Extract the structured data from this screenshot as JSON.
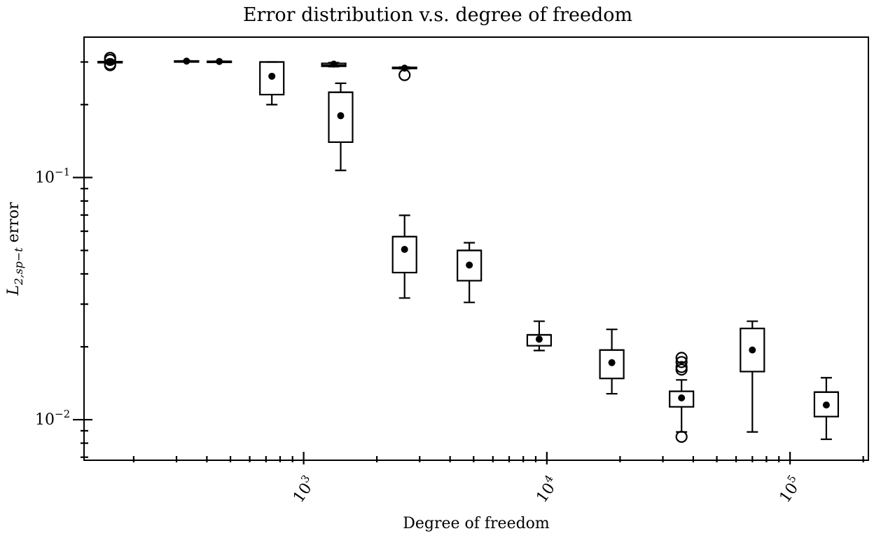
{
  "chart_data": {
    "type": "box",
    "title": "Error distribution v.s. degree of freedom",
    "xlabel": "Degree of freedom",
    "ylabel_main": "L",
    "ylabel_sub": "2,sp−t",
    "ylabel_tail": " error",
    "x_scale": "log",
    "y_scale": "log",
    "xlim": [
      125,
      210000
    ],
    "ylim": [
      0.0068,
      0.38
    ],
    "x_ticks": [
      {
        "value": 1000,
        "base": "10",
        "exp": "3"
      },
      {
        "value": 10000,
        "base": "10",
        "exp": "4"
      },
      {
        "value": 100000,
        "base": "10",
        "exp": "5"
      }
    ],
    "y_ticks": [
      {
        "value": 0.1,
        "base": "10",
        "exp": "−1"
      },
      {
        "value": 0.01,
        "base": "10",
        "exp": "−2"
      }
    ],
    "grid": false,
    "boxes": [
      {
        "x": 160,
        "whislo": 0.3,
        "q1": 0.3,
        "med": 0.3,
        "q3": 0.301,
        "whishi": 0.301,
        "mean": 0.301,
        "fliers": [
          0.312,
          0.306,
          0.294,
          0.291
        ]
      },
      {
        "x": 330,
        "whislo": 0.302,
        "q1": 0.302,
        "med": 0.302,
        "q3": 0.303,
        "whishi": 0.303,
        "mean": 0.3025,
        "fliers": []
      },
      {
        "x": 450,
        "whislo": 0.301,
        "q1": 0.301,
        "med": 0.301,
        "q3": 0.302,
        "whishi": 0.302,
        "mean": 0.3015,
        "fliers": []
      },
      {
        "x": 740,
        "whislo": 0.2,
        "q1": 0.22,
        "med": 0.3,
        "q3": 0.3,
        "whishi": 0.3,
        "mean": 0.262,
        "fliers": []
      },
      {
        "x": 1420,
        "whislo": 0.107,
        "q1": 0.14,
        "med": 0.225,
        "q3": 0.225,
        "whishi": 0.245,
        "mean": 0.18,
        "fliers": []
      },
      {
        "x": 1330,
        "whislo": 0.287,
        "q1": 0.288,
        "med": 0.291,
        "q3": 0.296,
        "whishi": 0.298,
        "mean": 0.294,
        "fliers": []
      },
      {
        "x": 2600,
        "whislo": 0.0318,
        "q1": 0.0405,
        "med": 0.057,
        "q3": 0.057,
        "whishi": 0.0698,
        "mean": 0.0505,
        "fliers": []
      },
      {
        "x": 2600,
        "whislo": 0.281,
        "q1": 0.282,
        "med": 0.283,
        "q3": 0.285,
        "whishi": 0.286,
        "mean": 0.283,
        "fliers": [
          0.265
        ]
      },
      {
        "x": 4800,
        "whislo": 0.0305,
        "q1": 0.0375,
        "med": 0.05,
        "q3": 0.05,
        "whishi": 0.0538,
        "mean": 0.0435,
        "fliers": []
      },
      {
        "x": 9300,
        "whislo": 0.0193,
        "q1": 0.0202,
        "med": 0.0224,
        "q3": 0.0224,
        "whishi": 0.0255,
        "mean": 0.0215,
        "fliers": []
      },
      {
        "x": 18500,
        "whislo": 0.0128,
        "q1": 0.0148,
        "med": 0.0194,
        "q3": 0.0194,
        "whishi": 0.0236,
        "mean": 0.0172,
        "fliers": []
      },
      {
        "x": 35800,
        "whislo": 0.0089,
        "q1": 0.0113,
        "med": 0.0131,
        "q3": 0.0131,
        "whishi": 0.0146,
        "mean": 0.0123,
        "fliers": [
          0.0085,
          0.0161,
          0.0165,
          0.0173,
          0.018
        ]
      },
      {
        "x": 70000,
        "whislo": 0.0089,
        "q1": 0.0158,
        "med": 0.0238,
        "q3": 0.0238,
        "whishi": 0.0255,
        "mean": 0.0194,
        "fliers": []
      },
      {
        "x": 141000,
        "whislo": 0.0083,
        "q1": 0.0103,
        "med": 0.013,
        "q3": 0.013,
        "whishi": 0.0149,
        "mean": 0.0115,
        "fliers": []
      }
    ]
  }
}
